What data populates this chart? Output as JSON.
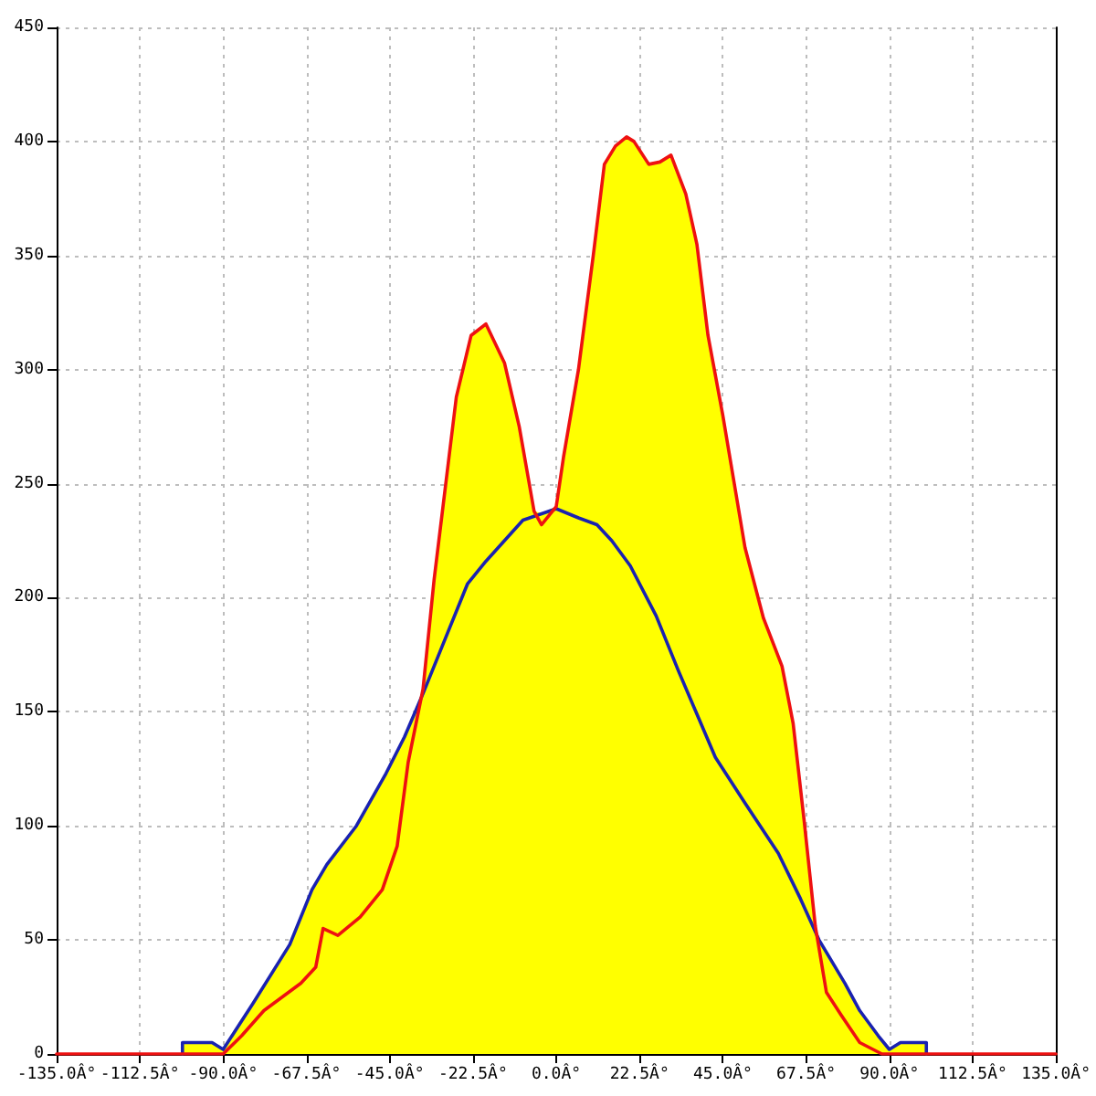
{
  "chart_data": {
    "type": "line",
    "series": [
      {
        "type": "area",
        "color": "#ffff00",
        "x": [
          -101,
          -101,
          -93,
          -90,
          -82,
          -72,
          -66,
          -62,
          -54,
          -46,
          -41,
          -36,
          -33,
          -30,
          -27,
          -23,
          -19,
          -14,
          -10,
          -6,
          -4,
          0,
          2,
          6,
          10,
          13,
          16,
          19,
          21,
          25,
          28,
          31,
          35,
          38,
          41,
          45,
          48,
          51,
          56,
          61,
          64,
          67,
          70,
          71,
          78,
          82,
          87,
          90,
          93,
          100,
          100
        ],
        "values": [
          0,
          5,
          5,
          2,
          22,
          48,
          72,
          83,
          100,
          123,
          139,
          160,
          208,
          248,
          288,
          315,
          320,
          303,
          275,
          238,
          237,
          240,
          262,
          300,
          350,
          390,
          398,
          402,
          400,
          390,
          391,
          394,
          377,
          355,
          315,
          280,
          251,
          222,
          191,
          170,
          145,
          102,
          56,
          50,
          31,
          19,
          8,
          2,
          5,
          5,
          0
        ]
      },
      {
        "color": "#1a22b0",
        "x": [
          -101,
          -101,
          -93,
          -90,
          -82,
          -72,
          -66,
          -62,
          -54,
          -46,
          -41,
          -36,
          -30,
          -24,
          -19,
          -9,
          0,
          6,
          11,
          15,
          20,
          27,
          33,
          43,
          51,
          60,
          66,
          71,
          78,
          82,
          87,
          90,
          93,
          100,
          100
        ],
        "values": [
          0,
          5,
          5,
          2,
          22,
          48,
          72,
          83,
          100,
          123,
          139,
          158,
          182,
          206,
          216,
          234,
          239,
          235,
          232,
          225,
          214,
          192,
          168,
          130,
          110,
          88,
          68,
          50,
          31,
          19,
          8,
          2,
          5,
          5,
          0
        ]
      },
      {
        "color": "#ee1111",
        "x": [
          -135,
          -90,
          -85,
          -79,
          -69,
          -65,
          -63,
          -59,
          -53,
          -47,
          -43,
          -40,
          -36,
          -33,
          -30,
          -27,
          -23,
          -19,
          -14,
          -10,
          -6,
          -4,
          0,
          2,
          6,
          10,
          13,
          16,
          19,
          21,
          25,
          28,
          31,
          35,
          38,
          41,
          45,
          48,
          51,
          56,
          61,
          64,
          67,
          70,
          73,
          77,
          82,
          88,
          135
        ],
        "values": [
          0,
          0,
          8,
          19,
          31,
          38,
          55,
          52,
          60,
          72,
          91,
          128,
          160,
          208,
          248,
          288,
          315,
          320,
          303,
          275,
          238,
          232,
          240,
          262,
          300,
          350,
          390,
          398,
          402,
          400,
          390,
          391,
          394,
          377,
          355,
          315,
          280,
          251,
          222,
          191,
          170,
          145,
          102,
          56,
          27,
          17,
          5,
          0,
          0
        ]
      }
    ],
    "xlim": [
      -135,
      135
    ],
    "xticks": [
      {
        "value": -135,
        "label": "-135.0Â°"
      },
      {
        "value": -112.5,
        "label": "-112.5Â°"
      },
      {
        "value": -90,
        "label": "-90.0Â°"
      },
      {
        "value": -67.5,
        "label": "-67.5Â°"
      },
      {
        "value": -45,
        "label": "-45.0Â°"
      },
      {
        "value": -22.5,
        "label": "-22.5Â°"
      },
      {
        "value": 0,
        "label": "0.0Â°"
      },
      {
        "value": 22.5,
        "label": "22.5Â°"
      },
      {
        "value": 45,
        "label": "45.0Â°"
      },
      {
        "value": 67.5,
        "label": "67.5Â°"
      },
      {
        "value": 90,
        "label": "90.0Â°"
      },
      {
        "value": 112.5,
        "label": "112.5Â°"
      },
      {
        "value": 135,
        "label": "135.0Â°"
      }
    ],
    "ylim": [
      0,
      450
    ],
    "yticks": [
      0,
      50,
      100,
      150,
      200,
      250,
      300,
      350,
      400,
      450
    ],
    "grid": true,
    "marker": "none"
  }
}
